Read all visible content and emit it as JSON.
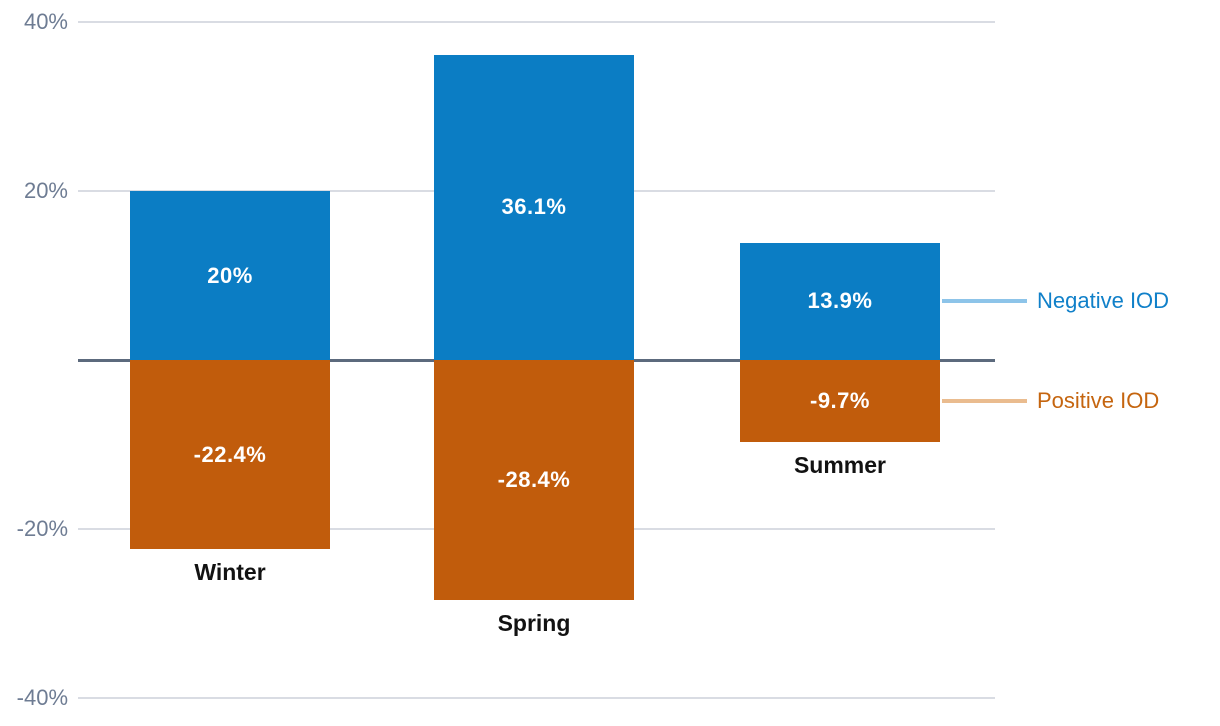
{
  "chart_data": {
    "type": "bar",
    "title": "",
    "categories": [
      "Winter",
      "Spring",
      "Summer"
    ],
    "series": [
      {
        "name": "Negative IOD",
        "color": "#0b7dc4",
        "values": [
          20,
          36.1,
          13.9
        ],
        "value_labels": [
          "20%",
          "36.1%",
          "13.9%"
        ]
      },
      {
        "name": "Positive IOD",
        "color": "#c15c0c",
        "values": [
          -22.4,
          -28.4,
          -9.7
        ],
        "value_labels": [
          "-22.4%",
          "-28.4%",
          "-9.7%"
        ]
      }
    ],
    "y_ticks": [
      {
        "value": 40,
        "label": "40%"
      },
      {
        "value": 20,
        "label": "20%"
      },
      {
        "value": -20,
        "label": "-20%"
      },
      {
        "value": -40,
        "label": "-40%"
      }
    ],
    "ylim": [
      -40,
      40
    ],
    "grid": true,
    "zero_baseline": true,
    "legend_position": "right",
    "legend": [
      {
        "label": "Negative IOD",
        "text_color": "#1080c9",
        "line_color": "#8dc4e9"
      },
      {
        "label": "Positive IOD",
        "text_color": "#c5650f",
        "line_color": "#eabc8f"
      }
    ],
    "colors": {
      "grid_line": "#d9dce3",
      "zero_line": "#5c6a7d",
      "tick_label": "#6e7c93",
      "category_label": "#121212",
      "bar_value_label": "#ffffff",
      "background": "#ffffff"
    }
  }
}
